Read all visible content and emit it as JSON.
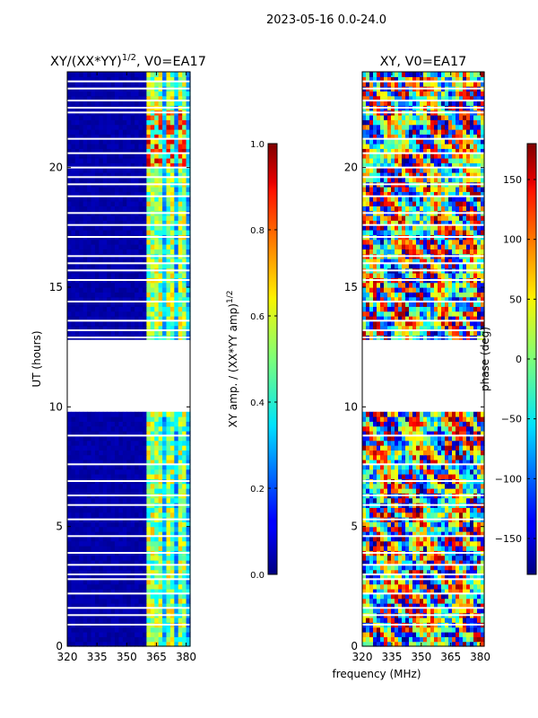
{
  "figure": {
    "suptitle": "2023-05-16 0.0-24.0",
    "xlabel": "frequency (MHz)"
  },
  "chart_data": [
    {
      "type": "heatmap",
      "title_main": "XY/(XX*YY)",
      "title_sup": "1/2",
      "title_suffix": ", V0=EA17",
      "xlabel": "",
      "ylabel": "UT (hours)",
      "xlim": [
        320,
        382
      ],
      "ylim": [
        0,
        24
      ],
      "xticks": [
        320,
        335,
        350,
        365,
        380
      ],
      "yticks": [
        0,
        5,
        10,
        15,
        20
      ],
      "data_gaps_hours": [
        [
          9.8,
          12.8
        ]
      ],
      "bright_channel_bands_mhz": [
        [
          360,
          364
        ],
        [
          364,
          368
        ],
        [
          370,
          374
        ],
        [
          376,
          380
        ]
      ],
      "colorbar": {
        "label_main": "XY amp. / (XX*YY amp)",
        "label_sup": "1/2",
        "range": [
          0.0,
          1.0
        ],
        "ticks": [
          "0.0",
          "0.2",
          "0.4",
          "0.6",
          "0.8",
          "1.0"
        ],
        "tick_values": [
          0.0,
          0.2,
          0.4,
          0.6,
          0.8,
          1.0
        ],
        "colormap": "jet"
      }
    },
    {
      "type": "heatmap",
      "title": "XY, V0=EA17",
      "xlabel": "frequency (MHz)",
      "ylabel": "",
      "xlim": [
        320,
        382
      ],
      "ylim": [
        0,
        24
      ],
      "xticks": [
        320,
        335,
        350,
        365,
        380
      ],
      "yticks": [
        0,
        5,
        10,
        15,
        20
      ],
      "data_gaps_hours": [
        [
          9.8,
          12.8
        ]
      ],
      "colorbar": {
        "label": "phase (deg)",
        "range": [
          -180,
          180
        ],
        "ticks": [
          "−150",
          "−100",
          "−50",
          "0",
          "50",
          "100",
          "150"
        ],
        "tick_values": [
          -150,
          -100,
          -50,
          0,
          50,
          100,
          150
        ],
        "colormap": "jet"
      }
    }
  ]
}
